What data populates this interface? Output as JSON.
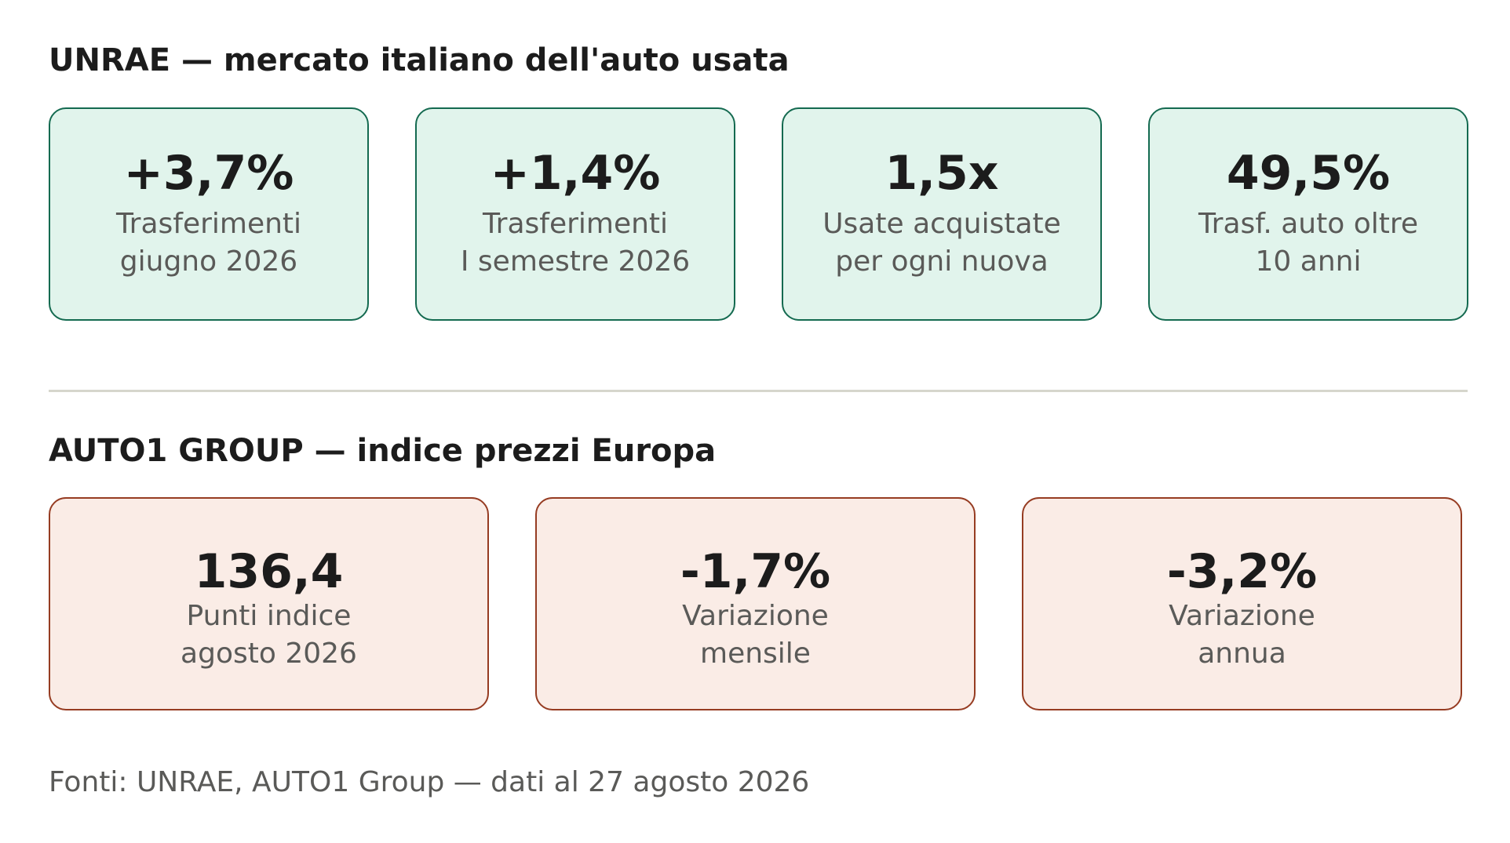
{
  "unrae": {
    "title": "UNRAE — mercato italiano dell'auto usata",
    "cards": [
      {
        "value": "+3,7%",
        "label_lines": [
          "Trasferimenti",
          "giugno 2026"
        ]
      },
      {
        "value": "+1,4%",
        "label_lines": [
          "Trasferimenti",
          "I semestre 2026"
        ]
      },
      {
        "value": "1,5x",
        "label_lines": [
          "Usate acquistate",
          "per ogni nuova"
        ]
      },
      {
        "value": "49,5%",
        "label_lines": [
          "Trasf. auto oltre",
          "10 anni"
        ]
      }
    ],
    "accent_color": "#146a50",
    "card_background": "#e1f4ec"
  },
  "auto1": {
    "title": "AUTO1 GROUP — indice prezzi Europa",
    "cards": [
      {
        "value": "136,4",
        "label_lines": [
          "Punti indice",
          "agosto 2026"
        ]
      },
      {
        "value": "-1,7%",
        "label_lines": [
          "Variazione",
          "mensile"
        ]
      },
      {
        "value": "-3,2%",
        "label_lines": [
          "Variazione",
          "annua"
        ]
      }
    ],
    "accent_color": "#963c22",
    "card_background": "#faece6"
  },
  "footer": {
    "source_text": "Fonti: UNRAE, AUTO1 Group — dati al 27 agosto 2026"
  }
}
